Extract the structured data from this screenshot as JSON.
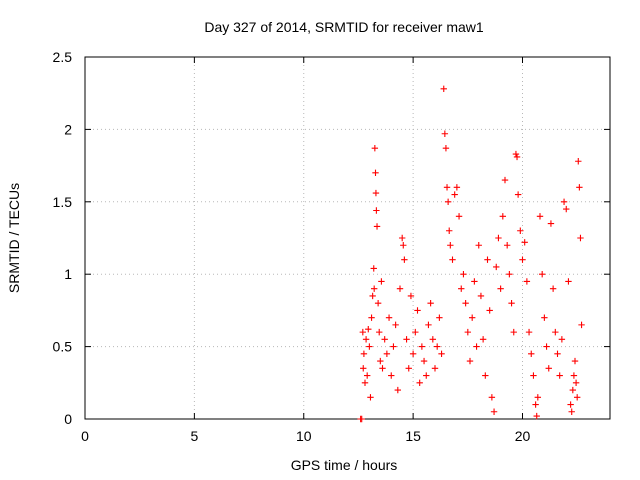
{
  "chart_data": {
    "type": "scatter",
    "title": "Day 327 of 2014, SRMTID for receiver maw1",
    "xlabel": "GPS time / hours",
    "ylabel": "SRMTID / TECUs",
    "xlim": [
      0,
      24
    ],
    "ylim": [
      0,
      2.5
    ],
    "xticks": [
      0,
      5,
      10,
      15,
      20
    ],
    "yticks": [
      0,
      0.5,
      1,
      1.5,
      2,
      2.5
    ],
    "xtick_labels": [
      "0",
      "5",
      "10",
      "15",
      "20"
    ],
    "ytick_labels": [
      "0",
      "0.5",
      "1",
      "1.5",
      "2",
      "2.5"
    ],
    "grid": true,
    "marker": "+",
    "color": "#ff0000",
    "series": [
      {
        "name": "SRMTID",
        "points": [
          [
            12.6,
            0.0
          ],
          [
            12.65,
            0.0
          ],
          [
            12.7,
            0.6
          ],
          [
            12.72,
            0.35
          ],
          [
            12.75,
            0.45
          ],
          [
            12.8,
            0.25
          ],
          [
            12.85,
            0.55
          ],
          [
            12.9,
            0.3
          ],
          [
            12.95,
            0.62
          ],
          [
            13.0,
            0.5
          ],
          [
            13.05,
            0.15
          ],
          [
            13.1,
            0.7
          ],
          [
            13.15,
            0.85
          ],
          [
            13.2,
            1.04
          ],
          [
            13.22,
            0.9
          ],
          [
            13.25,
            1.87
          ],
          [
            13.28,
            1.7
          ],
          [
            13.3,
            1.56
          ],
          [
            13.32,
            1.44
          ],
          [
            13.35,
            1.33
          ],
          [
            13.4,
            0.8
          ],
          [
            13.45,
            0.6
          ],
          [
            13.5,
            0.4
          ],
          [
            13.55,
            0.95
          ],
          [
            13.6,
            0.35
          ],
          [
            13.7,
            0.55
          ],
          [
            13.8,
            0.45
          ],
          [
            13.9,
            0.7
          ],
          [
            14.0,
            0.3
          ],
          [
            14.1,
            0.5
          ],
          [
            14.2,
            0.65
          ],
          [
            14.3,
            0.2
          ],
          [
            14.4,
            0.9
          ],
          [
            14.5,
            1.25
          ],
          [
            14.55,
            1.2
          ],
          [
            14.6,
            1.1
          ],
          [
            14.7,
            0.55
          ],
          [
            14.8,
            0.35
          ],
          [
            14.9,
            0.85
          ],
          [
            15.0,
            0.45
          ],
          [
            15.1,
            0.6
          ],
          [
            15.2,
            0.75
          ],
          [
            15.3,
            0.25
          ],
          [
            15.4,
            0.5
          ],
          [
            15.5,
            0.4
          ],
          [
            15.6,
            0.3
          ],
          [
            15.7,
            0.65
          ],
          [
            15.8,
            0.8
          ],
          [
            15.9,
            0.55
          ],
          [
            16.0,
            0.35
          ],
          [
            16.1,
            0.5
          ],
          [
            16.2,
            0.7
          ],
          [
            16.3,
            0.45
          ],
          [
            16.4,
            2.28
          ],
          [
            16.45,
            1.97
          ],
          [
            16.5,
            1.87
          ],
          [
            16.55,
            1.6
          ],
          [
            16.6,
            1.5
          ],
          [
            16.65,
            1.3
          ],
          [
            16.7,
            1.2
          ],
          [
            16.8,
            1.1
          ],
          [
            16.9,
            1.55
          ],
          [
            17.0,
            1.6
          ],
          [
            17.1,
            1.4
          ],
          [
            17.2,
            0.9
          ],
          [
            17.3,
            1.0
          ],
          [
            17.4,
            0.8
          ],
          [
            17.5,
            0.6
          ],
          [
            17.6,
            0.4
          ],
          [
            17.7,
            0.7
          ],
          [
            17.8,
            0.95
          ],
          [
            17.9,
            0.5
          ],
          [
            18.0,
            1.2
          ],
          [
            18.1,
            0.85
          ],
          [
            18.2,
            0.55
          ],
          [
            18.3,
            0.3
          ],
          [
            18.4,
            1.1
          ],
          [
            18.5,
            0.75
          ],
          [
            18.6,
            0.15
          ],
          [
            18.7,
            0.05
          ],
          [
            18.8,
            1.05
          ],
          [
            18.9,
            1.25
          ],
          [
            19.0,
            0.9
          ],
          [
            19.1,
            1.4
          ],
          [
            19.2,
            1.65
          ],
          [
            19.3,
            1.2
          ],
          [
            19.4,
            1.0
          ],
          [
            19.5,
            0.8
          ],
          [
            19.6,
            0.6
          ],
          [
            19.7,
            1.83
          ],
          [
            19.75,
            1.81
          ],
          [
            19.8,
            1.55
          ],
          [
            19.9,
            1.3
          ],
          [
            20.0,
            1.1
          ],
          [
            20.1,
            1.22
          ],
          [
            20.2,
            0.95
          ],
          [
            20.3,
            0.6
          ],
          [
            20.4,
            0.45
          ],
          [
            20.5,
            0.3
          ],
          [
            20.6,
            0.1
          ],
          [
            20.65,
            0.02
          ],
          [
            20.7,
            0.15
          ],
          [
            20.8,
            1.4
          ],
          [
            20.9,
            1.0
          ],
          [
            21.0,
            0.7
          ],
          [
            21.1,
            0.5
          ],
          [
            21.2,
            0.35
          ],
          [
            21.3,
            1.35
          ],
          [
            21.4,
            0.9
          ],
          [
            21.5,
            0.6
          ],
          [
            21.6,
            0.45
          ],
          [
            21.7,
            0.3
          ],
          [
            21.8,
            0.55
          ],
          [
            21.9,
            1.5
          ],
          [
            22.0,
            1.45
          ],
          [
            22.1,
            0.95
          ],
          [
            22.2,
            0.1
          ],
          [
            22.25,
            0.05
          ],
          [
            22.3,
            0.2
          ],
          [
            22.35,
            0.3
          ],
          [
            22.4,
            0.4
          ],
          [
            22.45,
            0.25
          ],
          [
            22.5,
            0.15
          ],
          [
            22.55,
            1.78
          ],
          [
            22.6,
            1.6
          ],
          [
            22.65,
            1.25
          ],
          [
            22.7,
            0.65
          ]
        ]
      }
    ]
  }
}
